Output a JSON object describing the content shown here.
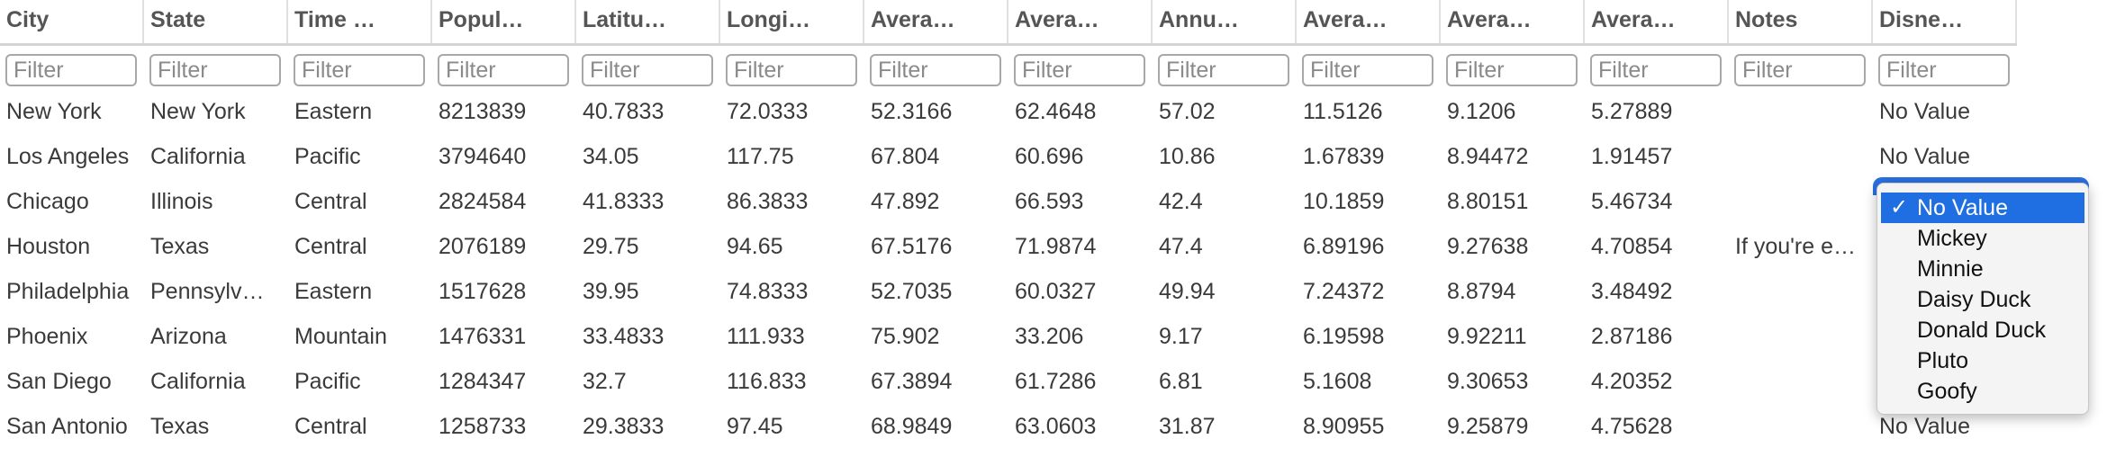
{
  "columns": [
    {
      "label": "City"
    },
    {
      "label": "State"
    },
    {
      "label": "Time …"
    },
    {
      "label": "Popul…"
    },
    {
      "label": "Latitu…"
    },
    {
      "label": "Longi…"
    },
    {
      "label": "Avera…"
    },
    {
      "label": "Avera…"
    },
    {
      "label": "Annu…"
    },
    {
      "label": "Avera…"
    },
    {
      "label": "Avera…"
    },
    {
      "label": "Avera…"
    },
    {
      "label": "Notes"
    },
    {
      "label": "Disne…"
    }
  ],
  "filter_placeholder": "Filter",
  "rows": [
    {
      "cells": [
        "New York",
        "New York",
        "Eastern",
        "8213839",
        "40.7833",
        "72.0333",
        "52.3166",
        "62.4648",
        "57.02",
        "11.5126",
        "9.1206",
        "5.27889",
        "",
        "No Value"
      ]
    },
    {
      "cells": [
        "Los Angeles",
        "California",
        "Pacific",
        "3794640",
        "34.05",
        "117.75",
        "67.804",
        "60.696",
        "10.86",
        "1.67839",
        "8.94472",
        "1.91457",
        "",
        "No Value"
      ]
    },
    {
      "cells": [
        "Chicago",
        "Illinois",
        "Central",
        "2824584",
        "41.8333",
        "86.3833",
        "47.892",
        "66.593",
        "42.4",
        "10.1859",
        "8.80151",
        "5.46734",
        "",
        ""
      ]
    },
    {
      "cells": [
        "Houston",
        "Texas",
        "Central",
        "2076189",
        "29.75",
        "94.65",
        "67.5176",
        "71.9874",
        "47.4",
        "6.89196",
        "9.27638",
        "4.70854",
        "If you're e…",
        ""
      ]
    },
    {
      "cells": [
        "Philadelphia",
        "Pennsylv…",
        "Eastern",
        "1517628",
        "39.95",
        "74.8333",
        "52.7035",
        "60.0327",
        "49.94",
        "7.24372",
        "8.8794",
        "3.48492",
        "",
        ""
      ]
    },
    {
      "cells": [
        "Phoenix",
        "Arizona",
        "Mountain",
        "1476331",
        "33.4833",
        "111.933",
        "75.902",
        "33.206",
        "9.17",
        "6.19598",
        "9.92211",
        "2.87186",
        "",
        ""
      ]
    },
    {
      "cells": [
        "San Diego",
        "California",
        "Pacific",
        "1284347",
        "32.7",
        "116.833",
        "67.3894",
        "61.7286",
        "6.81",
        "5.1608",
        "9.30653",
        "4.20352",
        "",
        ""
      ]
    },
    {
      "cells": [
        "San Antonio",
        "Texas",
        "Central",
        "1258733",
        "29.3833",
        "97.45",
        "68.9849",
        "63.0603",
        "31.87",
        "8.90955",
        "9.25879",
        "4.75628",
        "",
        "No Value"
      ]
    }
  ],
  "dropdown": {
    "check": "✓",
    "options": [
      "No Value",
      "Mickey",
      "Minnie",
      "Daisy Duck",
      "Donald Duck",
      "Pluto",
      "Goofy"
    ],
    "selected_index": 0,
    "accent": "#1f6fe3"
  }
}
